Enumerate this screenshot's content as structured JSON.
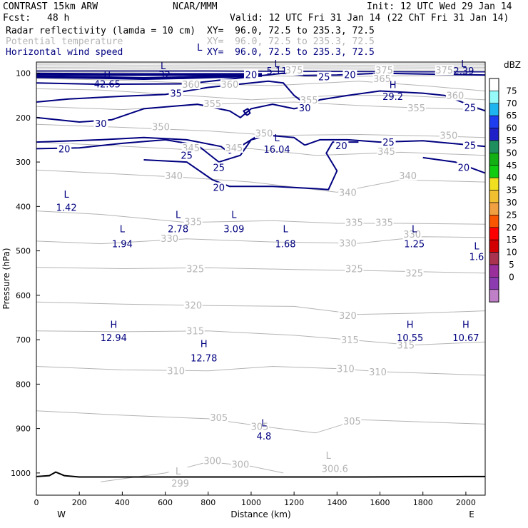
{
  "header": {
    "model": "CONTRAST 15km ARW",
    "org": "NCAR/MMM",
    "init": "Init: 12 UTC Wed 29 Jan 14",
    "fcst_label": "Fcst:",
    "fcst_value": "48 h",
    "valid": "Valid: 12 UTC Fri 31 Jan 14 (22 ChT Fri 31 Jan 14)",
    "fields": [
      {
        "name": "Radar reflectivity (lamda = 10 cm)",
        "xy": "XY=  96.0, 72.5 to 235.3, 72.5",
        "color": "#000000"
      },
      {
        "name": "Potential temperature",
        "xy": "XY=  96.0, 72.5 to 235.3, 72.5",
        "color": "#b4b4b4"
      },
      {
        "name": "Horizontal wind speed",
        "xy": "XY=  96.0, 72.5 to 235.3, 72.5",
        "color": "#000080"
      }
    ]
  },
  "chart_data": {
    "type": "contour",
    "xlabel": "Distance (km)",
    "ylabel": "Pressure (hPa)",
    "xlim": [
      0,
      2090
    ],
    "ylim": [
      1050,
      75
    ],
    "x_ticks": [
      0,
      200,
      400,
      600,
      800,
      1000,
      1200,
      1400,
      1600,
      1800,
      2000
    ],
    "y_ticks": [
      100,
      200,
      300,
      400,
      500,
      600,
      700,
      800,
      900,
      1000
    ],
    "x_end_labels": {
      "left": "W",
      "right": "E"
    },
    "colorbar": {
      "units": "dBZ",
      "levels": [
        0,
        5,
        10,
        15,
        20,
        25,
        30,
        35,
        40,
        45,
        50,
        55,
        60,
        65,
        70,
        75
      ],
      "colors": [
        "#ffffff",
        "#96fafa",
        "#1eb4f0",
        "#1e3cf0",
        "#2020c8",
        "#1f8f5f",
        "#12b012",
        "#10cc10",
        "#f0e020",
        "#f0c030",
        "#f0a040",
        "#fa5500",
        "#ff0000",
        "#d20000",
        "#a83250",
        "#9a2e9a",
        "#8c3cb0",
        "#c080c8"
      ]
    },
    "theta_labels": [
      {
        "v": "375",
        "x": 1200,
        "p": 93
      },
      {
        "v": "375",
        "x": 1620,
        "p": 93
      },
      {
        "v": "375",
        "x": 1900,
        "p": 93
      },
      {
        "v": "365",
        "x": 1610,
        "p": 112
      },
      {
        "v": "360",
        "x": 720,
        "p": 125
      },
      {
        "v": "360",
        "x": 900,
        "p": 125
      },
      {
        "v": "360",
        "x": 1950,
        "p": 150
      },
      {
        "v": "355",
        "x": 820,
        "p": 168
      },
      {
        "v": "355",
        "x": 1270,
        "p": 160
      },
      {
        "v": "355",
        "x": 1770,
        "p": 178
      },
      {
        "v": "350",
        "x": 580,
        "p": 220
      },
      {
        "v": "350",
        "x": 1060,
        "p": 235
      },
      {
        "v": "350",
        "x": 1920,
        "p": 240
      },
      {
        "v": "345",
        "x": 720,
        "p": 268
      },
      {
        "v": "345",
        "x": 920,
        "p": 268
      },
      {
        "v": "345",
        "x": 1630,
        "p": 276
      },
      {
        "v": "340",
        "x": 640,
        "p": 330
      },
      {
        "v": "340",
        "x": 1450,
        "p": 368
      },
      {
        "v": "340",
        "x": 1730,
        "p": 330
      },
      {
        "v": "335",
        "x": 730,
        "p": 434
      },
      {
        "v": "335",
        "x": 1480,
        "p": 436
      },
      {
        "v": "335",
        "x": 1620,
        "p": 436
      },
      {
        "v": "330",
        "x": 620,
        "p": 472
      },
      {
        "v": "330",
        "x": 1450,
        "p": 482
      },
      {
        "v": "330",
        "x": 1750,
        "p": 462
      },
      {
        "v": "325",
        "x": 740,
        "p": 540
      },
      {
        "v": "325",
        "x": 1480,
        "p": 540
      },
      {
        "v": "325",
        "x": 1760,
        "p": 550
      },
      {
        "v": "320",
        "x": 730,
        "p": 622
      },
      {
        "v": "320",
        "x": 1450,
        "p": 645
      },
      {
        "v": "315",
        "x": 740,
        "p": 680
      },
      {
        "v": "315",
        "x": 1460,
        "p": 700
      },
      {
        "v": "315",
        "x": 1720,
        "p": 712
      },
      {
        "v": "310",
        "x": 650,
        "p": 770
      },
      {
        "v": "310",
        "x": 1440,
        "p": 765
      },
      {
        "v": "310",
        "x": 1590,
        "p": 772
      },
      {
        "v": "305",
        "x": 850,
        "p": 875
      },
      {
        "v": "305",
        "x": 1040,
        "p": 895
      },
      {
        "v": "305",
        "x": 1470,
        "p": 883
      },
      {
        "v": "300",
        "x": 820,
        "p": 972
      },
      {
        "v": "300",
        "x": 950,
        "p": 980
      },
      {
        "v": "299",
        "x": 670,
        "p": 1023
      },
      {
        "v": "300.6",
        "x": 1390,
        "p": 990
      },
      {
        "v": "L",
        "x": 1360,
        "p": 960
      },
      {
        "v": "L",
        "x": 660,
        "p": 995
      }
    ],
    "wind_labels": [
      {
        "v": "20",
        "x": 1000,
        "p": 103
      },
      {
        "v": "25",
        "x": 1340,
        "p": 108
      },
      {
        "v": "20",
        "x": 1460,
        "p": 103
      },
      {
        "v": "35",
        "x": 650,
        "p": 145
      },
      {
        "v": "30",
        "x": 1250,
        "p": 178
      },
      {
        "v": "25",
        "x": 2020,
        "p": 177
      },
      {
        "v": "30",
        "x": 300,
        "p": 213
      },
      {
        "v": "25",
        "x": 1640,
        "p": 255
      },
      {
        "v": "25",
        "x": 2020,
        "p": 262
      },
      {
        "v": "20",
        "x": 130,
        "p": 270
      },
      {
        "v": "25",
        "x": 700,
        "p": 285
      },
      {
        "v": "25",
        "x": 850,
        "p": 312
      },
      {
        "v": "20",
        "x": 1420,
        "p": 263
      },
      {
        "v": "20",
        "x": 1990,
        "p": 312
      },
      {
        "v": "20",
        "x": 850,
        "p": 357
      }
    ],
    "extrema": [
      {
        "t": "L",
        "v": ".32",
        "x": 590,
        "p": 91,
        "sub_p": 111
      },
      {
        "t": "L",
        "v": "5.11",
        "x": 1120,
        "p": 86,
        "sub_p": 102
      },
      {
        "t": "L",
        "v": "2.39",
        "x": 1990,
        "p": 86,
        "sub_p": 102
      },
      {
        "t": "H",
        "v": "42.65",
        "x": 330,
        "p": 113,
        "sub_p": 132
      },
      {
        "t": "H",
        "v": "29.2",
        "x": 1660,
        "p": 134,
        "sub_p": 160
      },
      {
        "t": "L",
        "v": "16.04",
        "x": 1120,
        "p": 253,
        "sub_p": 279
      },
      {
        "t": "L",
        "v": "1.42",
        "x": 140,
        "p": 380,
        "sub_p": 410
      },
      {
        "t": "L",
        "v": "2.78",
        "x": 660,
        "p": 426,
        "sub_p": 458
      },
      {
        "t": "L",
        "v": "3.09",
        "x": 920,
        "p": 426,
        "sub_p": 458
      },
      {
        "t": "L",
        "v": "1.94",
        "x": 400,
        "p": 458,
        "sub_p": 492
      },
      {
        "t": "L",
        "v": "1.68",
        "x": 1160,
        "p": 458,
        "sub_p": 492
      },
      {
        "t": "L",
        "v": "1.25",
        "x": 1760,
        "p": 458,
        "sub_p": 492
      },
      {
        "t": "L",
        "v": "1.6",
        "x": 2050,
        "p": 497,
        "sub_p": 521
      },
      {
        "t": "H",
        "v": "12.94",
        "x": 360,
        "p": 673,
        "sub_p": 703
      },
      {
        "t": "H",
        "v": "12.78",
        "x": 780,
        "p": 717,
        "sub_p": 749
      },
      {
        "t": "H",
        "v": "10.55",
        "x": 1740,
        "p": 673,
        "sub_p": 703
      },
      {
        "t": "H",
        "v": "10.67",
        "x": 2000,
        "p": 673,
        "sub_p": 703
      },
      {
        "t": "L",
        "v": "4.8",
        "x": 1060,
        "p": 895,
        "sub_p": 925
      }
    ],
    "annotation": {
      "label": "L",
      "x": 760,
      "p": 63
    }
  }
}
